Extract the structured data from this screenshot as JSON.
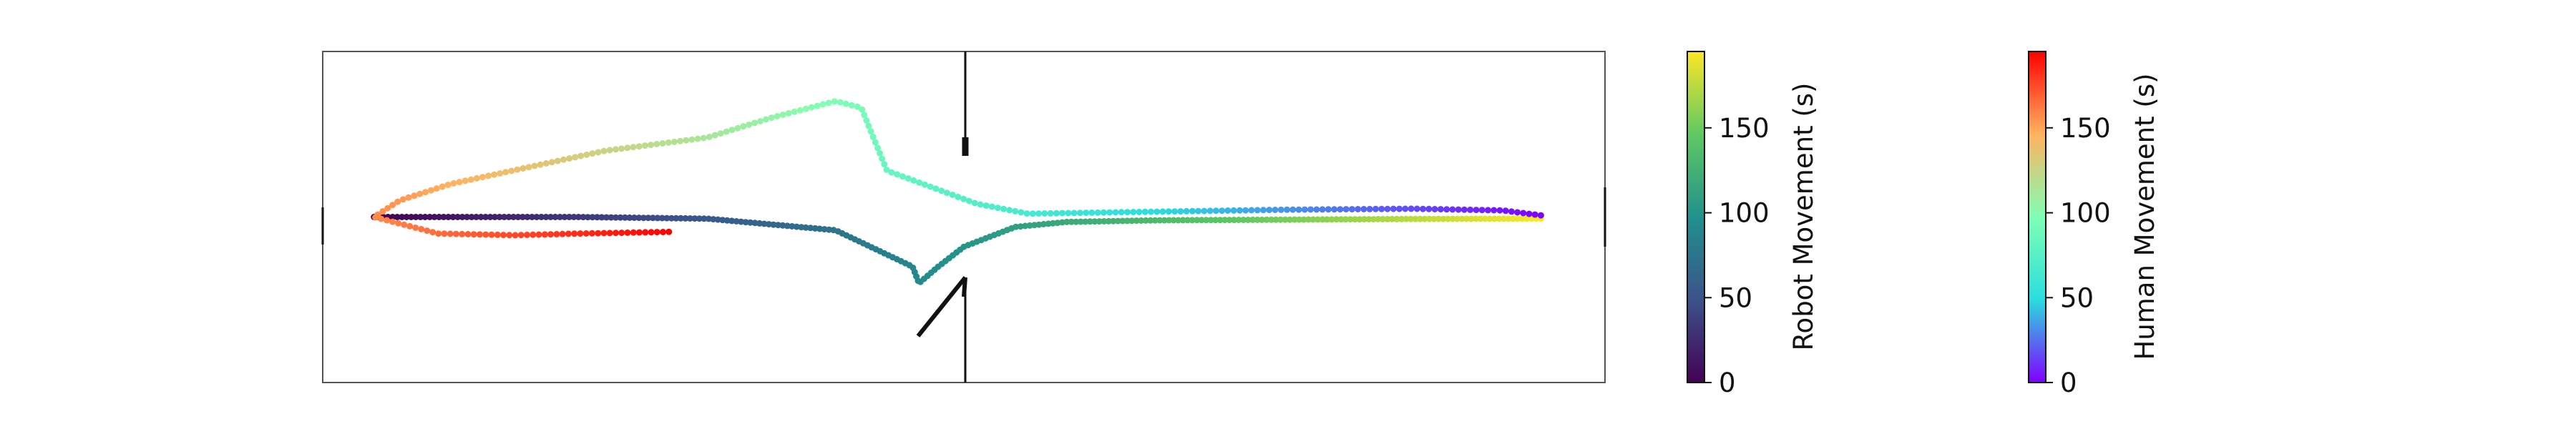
{
  "chart_data": {
    "type": "scatter",
    "title": "",
    "axes_ticks_visible": false,
    "series": [
      {
        "name": "Robot Movement (s)",
        "colormap": "viridis",
        "time_range": [
          0,
          195
        ],
        "path_points": [
          [
            0.04,
            0.5
          ],
          [
            0.2,
            0.5
          ],
          [
            0.3,
            0.505
          ],
          [
            0.4,
            0.54
          ],
          [
            0.46,
            0.65
          ],
          [
            0.465,
            0.7
          ],
          [
            0.48,
            0.65
          ],
          [
            0.5,
            0.59
          ],
          [
            0.54,
            0.53
          ],
          [
            0.58,
            0.515
          ],
          [
            0.65,
            0.51
          ],
          [
            0.75,
            0.508
          ],
          [
            0.85,
            0.506
          ],
          [
            0.95,
            0.505
          ]
        ]
      },
      {
        "name": "Human Movement (s)",
        "colormap": "rainbow",
        "time_range": [
          0,
          195
        ],
        "path_points": [
          [
            0.95,
            0.495
          ],
          [
            0.92,
            0.48
          ],
          [
            0.85,
            0.475
          ],
          [
            0.75,
            0.478
          ],
          [
            0.65,
            0.484
          ],
          [
            0.55,
            0.49
          ],
          [
            0.51,
            0.46
          ],
          [
            0.44,
            0.36
          ],
          [
            0.42,
            0.17
          ],
          [
            0.4,
            0.15
          ],
          [
            0.35,
            0.2
          ],
          [
            0.3,
            0.26
          ],
          [
            0.22,
            0.3
          ],
          [
            0.1,
            0.4
          ],
          [
            0.06,
            0.45
          ],
          [
            0.04,
            0.5
          ],
          [
            0.09,
            0.55
          ],
          [
            0.15,
            0.555
          ],
          [
            0.2,
            0.55
          ],
          [
            0.27,
            0.545
          ]
        ]
      }
    ],
    "colorbars": [
      {
        "label": "Robot Movement (s)",
        "cmap": "viridis",
        "range": [
          0,
          195
        ],
        "ticks": [
          "0",
          "50",
          "100",
          "150"
        ]
      },
      {
        "label": "Human Movement (s)",
        "cmap": "rainbow",
        "range": [
          0,
          195
        ],
        "ticks": [
          "0",
          "50",
          "100",
          "150"
        ]
      }
    ]
  }
}
